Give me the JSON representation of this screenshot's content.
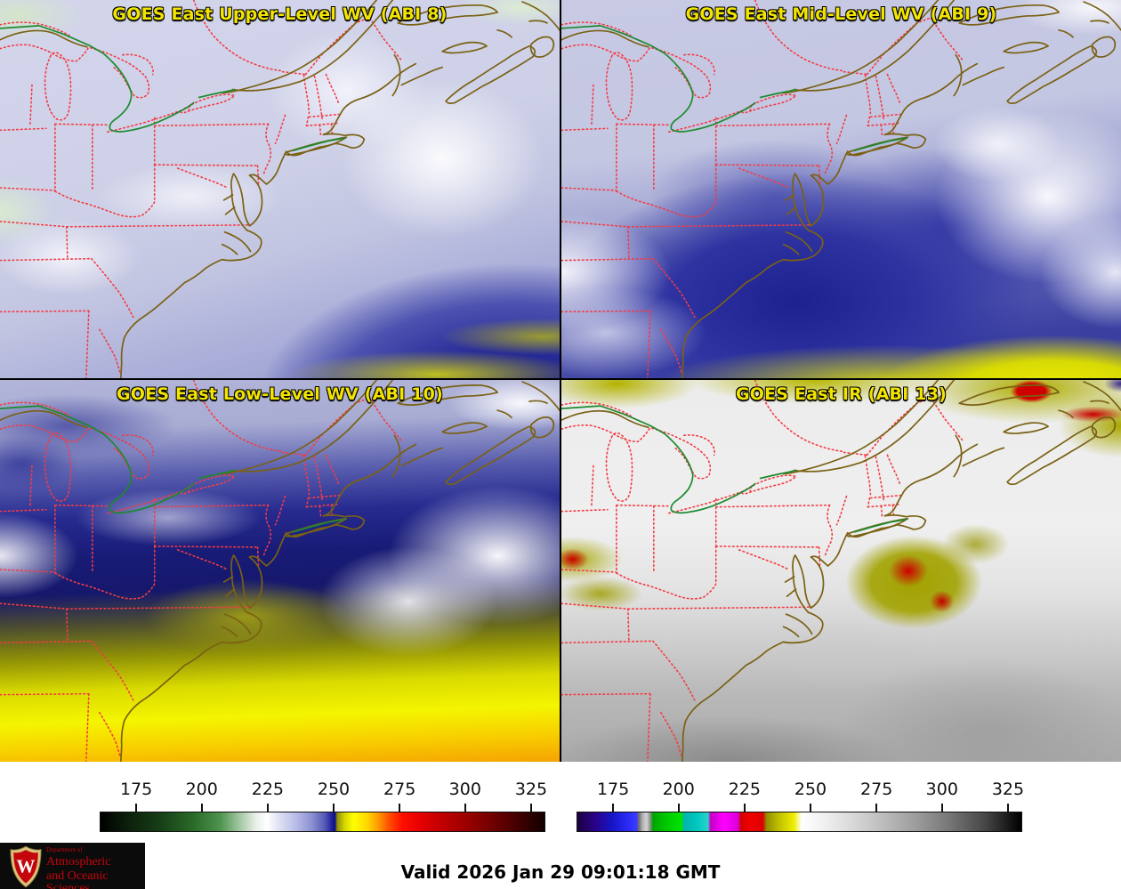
{
  "panels": [
    {
      "title": "GOES East Upper-Level WV (ABI 8)"
    },
    {
      "title": "GOES East Mid-Level WV (ABI 9)"
    },
    {
      "title": "GOES East Low-Level WV (ABI 10)"
    },
    {
      "title": "GOES East IR (ABI 13)"
    }
  ],
  "colorbars": [
    {
      "name": "wv-brightness-temperature-scale",
      "ticks": [
        "175",
        "200",
        "225",
        "250",
        "275",
        "300",
        "325"
      ],
      "stops": [
        [
          "#000000",
          0
        ],
        [
          "#0b1f0b",
          6
        ],
        [
          "#163c16",
          13
        ],
        [
          "#2a6b2a",
          21
        ],
        [
          "#4e934e",
          27
        ],
        [
          "#9cc49c",
          31
        ],
        [
          "#e9efe9",
          35
        ],
        [
          "#ffffff",
          37.5
        ],
        [
          "#dcdef2",
          40.5
        ],
        [
          "#b8bce6",
          44
        ],
        [
          "#8d92d2",
          47.5
        ],
        [
          "#555bb6",
          50.5
        ],
        [
          "#24249c",
          52
        ],
        [
          "#0a0a8c",
          52.8
        ],
        [
          "#8f8f06",
          53.3
        ],
        [
          "#d6d600",
          55
        ],
        [
          "#ffff00",
          57
        ],
        [
          "#ffd800",
          60
        ],
        [
          "#ff9c00",
          62.5
        ],
        [
          "#ff4e00",
          65
        ],
        [
          "#ff0e00",
          68
        ],
        [
          "#e60000",
          72
        ],
        [
          "#c00000",
          77
        ],
        [
          "#970000",
          83
        ],
        [
          "#6b0000",
          89
        ],
        [
          "#3a0000",
          95
        ],
        [
          "#120000",
          100
        ]
      ]
    },
    {
      "name": "ir-brightness-temperature-scale",
      "ticks": [
        "175",
        "200",
        "225",
        "250",
        "275",
        "300",
        "325"
      ],
      "stops": [
        [
          "#1c0140",
          0
        ],
        [
          "#290289",
          4
        ],
        [
          "#1616c8",
          8
        ],
        [
          "#2f2fff",
          12
        ],
        [
          "#3c3cff",
          13.4
        ],
        [
          "#6e6e6e",
          13.8
        ],
        [
          "#b9b9b9",
          14.8
        ],
        [
          "#d2d2d2",
          15.6
        ],
        [
          "#8f8f8f",
          16.4
        ],
        [
          "#00a400",
          17
        ],
        [
          "#00c800",
          20
        ],
        [
          "#00e400",
          23.4
        ],
        [
          "#00b4ac",
          24
        ],
        [
          "#00c8c0",
          27
        ],
        [
          "#2cd2ca",
          29.4
        ],
        [
          "#c400c4",
          30
        ],
        [
          "#ff00ff",
          33
        ],
        [
          "#d800d8",
          36.2
        ],
        [
          "#d40000",
          36.8
        ],
        [
          "#f00000",
          39
        ],
        [
          "#dc0000",
          41.8
        ],
        [
          "#8f8f00",
          42.6
        ],
        [
          "#c2c200",
          45.5
        ],
        [
          "#eeee00",
          48.8
        ],
        [
          "#ffffff",
          50.5
        ],
        [
          "#f2f2f2",
          55
        ],
        [
          "#dcdcdc",
          61
        ],
        [
          "#c0c0c0",
          68
        ],
        [
          "#9e9e9e",
          76
        ],
        [
          "#757575",
          84
        ],
        [
          "#454545",
          92
        ],
        [
          "#000000",
          100
        ]
      ]
    }
  ],
  "colorbar_layout": {
    "tick_fractions": [
      8.2,
      22.9,
      37.7,
      52.5,
      67.3,
      82.0,
      96.8
    ]
  },
  "footer": {
    "valid_time": "Valid 2026 Jan 29 09:01:18 GMT"
  },
  "logo": {
    "dept_line": "Department of",
    "line1": "Atmospheric",
    "line2": "and Oceanic Sciences",
    "crest_letter": "W"
  },
  "colors": {
    "panel_title": "#f2e400",
    "state_boundary": "#f43b44",
    "coastline": "#7a6114",
    "international_border": "#1c8a2e",
    "uw_red": "#c5050c",
    "separator": "#000000"
  }
}
